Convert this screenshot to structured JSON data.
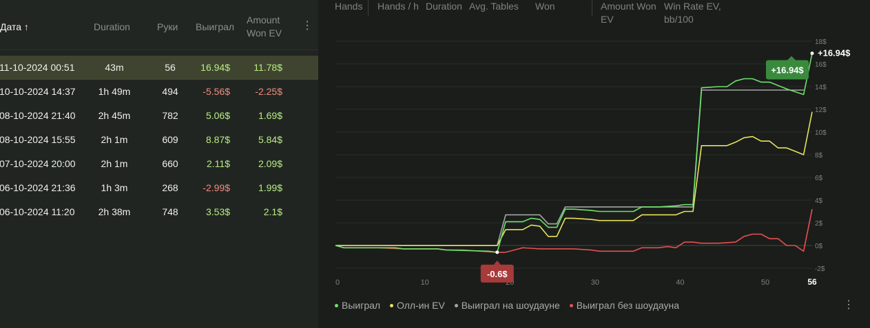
{
  "table": {
    "headers": {
      "date": "Дата ↑",
      "duration": "Duration",
      "hands": "Руки",
      "won": "Выиграл",
      "won_ev_line1": "Amount",
      "won_ev_line2": "Won EV"
    },
    "menu_icon": "⋮",
    "rows": [
      {
        "date": "11-10-2024 00:51",
        "duration": "43m",
        "hands": "56",
        "won": "16.94$",
        "won_ev": "11.78$",
        "selected": true
      },
      {
        "date": "10-10-2024 14:37",
        "duration": "1h 49m",
        "hands": "494",
        "won": "-5.56$",
        "won_ev": "-2.25$"
      },
      {
        "date": "08-10-2024 21:40",
        "duration": "2h 45m",
        "hands": "782",
        "won": "5.06$",
        "won_ev": "1.69$"
      },
      {
        "date": "08-10-2024 15:55",
        "duration": "2h 1m",
        "hands": "609",
        "won": "8.87$",
        "won_ev": "5.84$"
      },
      {
        "date": "07-10-2024 20:00",
        "duration": "2h 1m",
        "hands": "660",
        "won": "2.11$",
        "won_ev": "2.09$"
      },
      {
        "date": "06-10-2024 21:36",
        "duration": "1h 3m",
        "hands": "268",
        "won": "-2.99$",
        "won_ev": "1.99$"
      },
      {
        "date": "06-10-2024 11:20",
        "duration": "2h 38m",
        "hands": "748",
        "won": "3.53$",
        "won_ev": "2.1$"
      }
    ]
  },
  "stats_header": {
    "hands": "Hands",
    "hands_per_h": "Hands / h",
    "duration": "Duration",
    "avg_tables": "Avg. Tables",
    "won": "Won",
    "amount_won_ev_1": "Amount Won",
    "amount_won_ev_2": "EV",
    "win_rate_1": "Win Rate EV,",
    "win_rate_2": "bb/100"
  },
  "legend": {
    "won": "Выиграл",
    "allin_ev": "Олл-ин EV",
    "showdown": "Выиграл на шоудауне",
    "no_showdown": "Выиграл без шоудауна"
  },
  "menu_icon": "⋮",
  "colors": {
    "won": "#6ee36a",
    "allin_ev": "#e8e35a",
    "showdown": "#a3a6a3",
    "no_showdown": "#e65050",
    "positive": "#b8ec82",
    "negative": "#ee8d7d",
    "selected_row": "#3f4430"
  },
  "chart_data": {
    "type": "line",
    "x_ticks": [
      "0",
      "10",
      "20",
      "30",
      "40",
      "50",
      "56"
    ],
    "y_ticks": [
      "-2$",
      "0$",
      "2$",
      "4$",
      "6$",
      "8$",
      "10$",
      "12$",
      "14$",
      "16$",
      "18$"
    ],
    "xlim": [
      0,
      56
    ],
    "ylim": [
      -2.5,
      18
    ],
    "grid": true,
    "legend_position": "bottom-left",
    "annotations": {
      "min_label": "-0.6$",
      "max_label": "+16.94$",
      "end_label": "+16.94$",
      "end_x_label": "56"
    },
    "series": [
      {
        "name": "Выиграл",
        "x": [
          0,
          1,
          4,
          7,
          8,
          12,
          13,
          18,
          19,
          20,
          21,
          22,
          23,
          24,
          25,
          26,
          27,
          28,
          30,
          31,
          35,
          36,
          38,
          40,
          41,
          42,
          43,
          45,
          46,
          47,
          48,
          49,
          50,
          51,
          53,
          55,
          56
        ],
        "y": [
          0,
          -0.2,
          -0.2,
          -0.2,
          -0.3,
          -0.3,
          -0.4,
          -0.5,
          -0.6,
          2.1,
          2.1,
          2.1,
          2.4,
          2.3,
          1.6,
          1.6,
          3.2,
          3.2,
          3.1,
          3.0,
          3.0,
          3.4,
          3.4,
          3.5,
          3.6,
          3.6,
          13.9,
          14.0,
          14.0,
          14.5,
          14.7,
          14.7,
          14.4,
          14.4,
          13.8,
          13.3,
          16.94
        ]
      },
      {
        "name": "Олл-ин EV",
        "x": [
          0,
          19,
          20,
          21,
          22,
          23,
          24,
          25,
          26,
          27,
          28,
          30,
          31,
          35,
          36,
          38,
          40,
          41,
          42,
          43,
          45,
          46,
          47,
          48,
          49,
          50,
          51,
          52,
          53,
          54,
          55,
          56
        ],
        "y": [
          0,
          0,
          1.4,
          1.4,
          1.4,
          1.8,
          1.7,
          0.8,
          0.8,
          2.4,
          2.4,
          2.3,
          2.2,
          2.2,
          2.7,
          2.7,
          2.7,
          3.0,
          3.0,
          8.8,
          8.8,
          8.8,
          9.1,
          9.5,
          9.6,
          9.2,
          9.2,
          8.6,
          8.6,
          8.3,
          8.0,
          11.78
        ]
      },
      {
        "name": "Выиграл на шоудауне",
        "x": [
          0,
          19,
          20,
          24,
          25,
          26,
          27,
          42,
          43,
          55
        ],
        "y": [
          0,
          0,
          2.7,
          2.7,
          1.9,
          1.9,
          3.4,
          3.4,
          13.7,
          13.7
        ]
      },
      {
        "name": "Выиграл без шоудауна",
        "x": [
          0,
          1,
          3,
          5,
          8,
          12,
          13,
          15,
          17,
          19,
          20,
          21,
          22,
          24,
          25,
          26,
          27,
          28,
          30,
          31,
          32,
          35,
          36,
          38,
          39,
          40,
          41,
          42,
          43,
          45,
          47,
          48,
          49,
          50,
          51,
          52,
          53,
          54,
          55,
          56
        ],
        "y": [
          0,
          -0.2,
          -0.2,
          -0.2,
          -0.3,
          -0.3,
          -0.4,
          -0.4,
          -0.5,
          -0.6,
          -0.6,
          -0.4,
          -0.2,
          -0.3,
          -0.3,
          -0.3,
          -0.3,
          -0.3,
          -0.4,
          -0.5,
          -0.5,
          -0.5,
          -0.2,
          -0.2,
          -0.1,
          -0.2,
          0.3,
          0.3,
          0.2,
          0.2,
          0.3,
          0.8,
          1.0,
          1.0,
          0.6,
          0.6,
          0.0,
          0.0,
          -0.5,
          3.2
        ]
      }
    ]
  }
}
